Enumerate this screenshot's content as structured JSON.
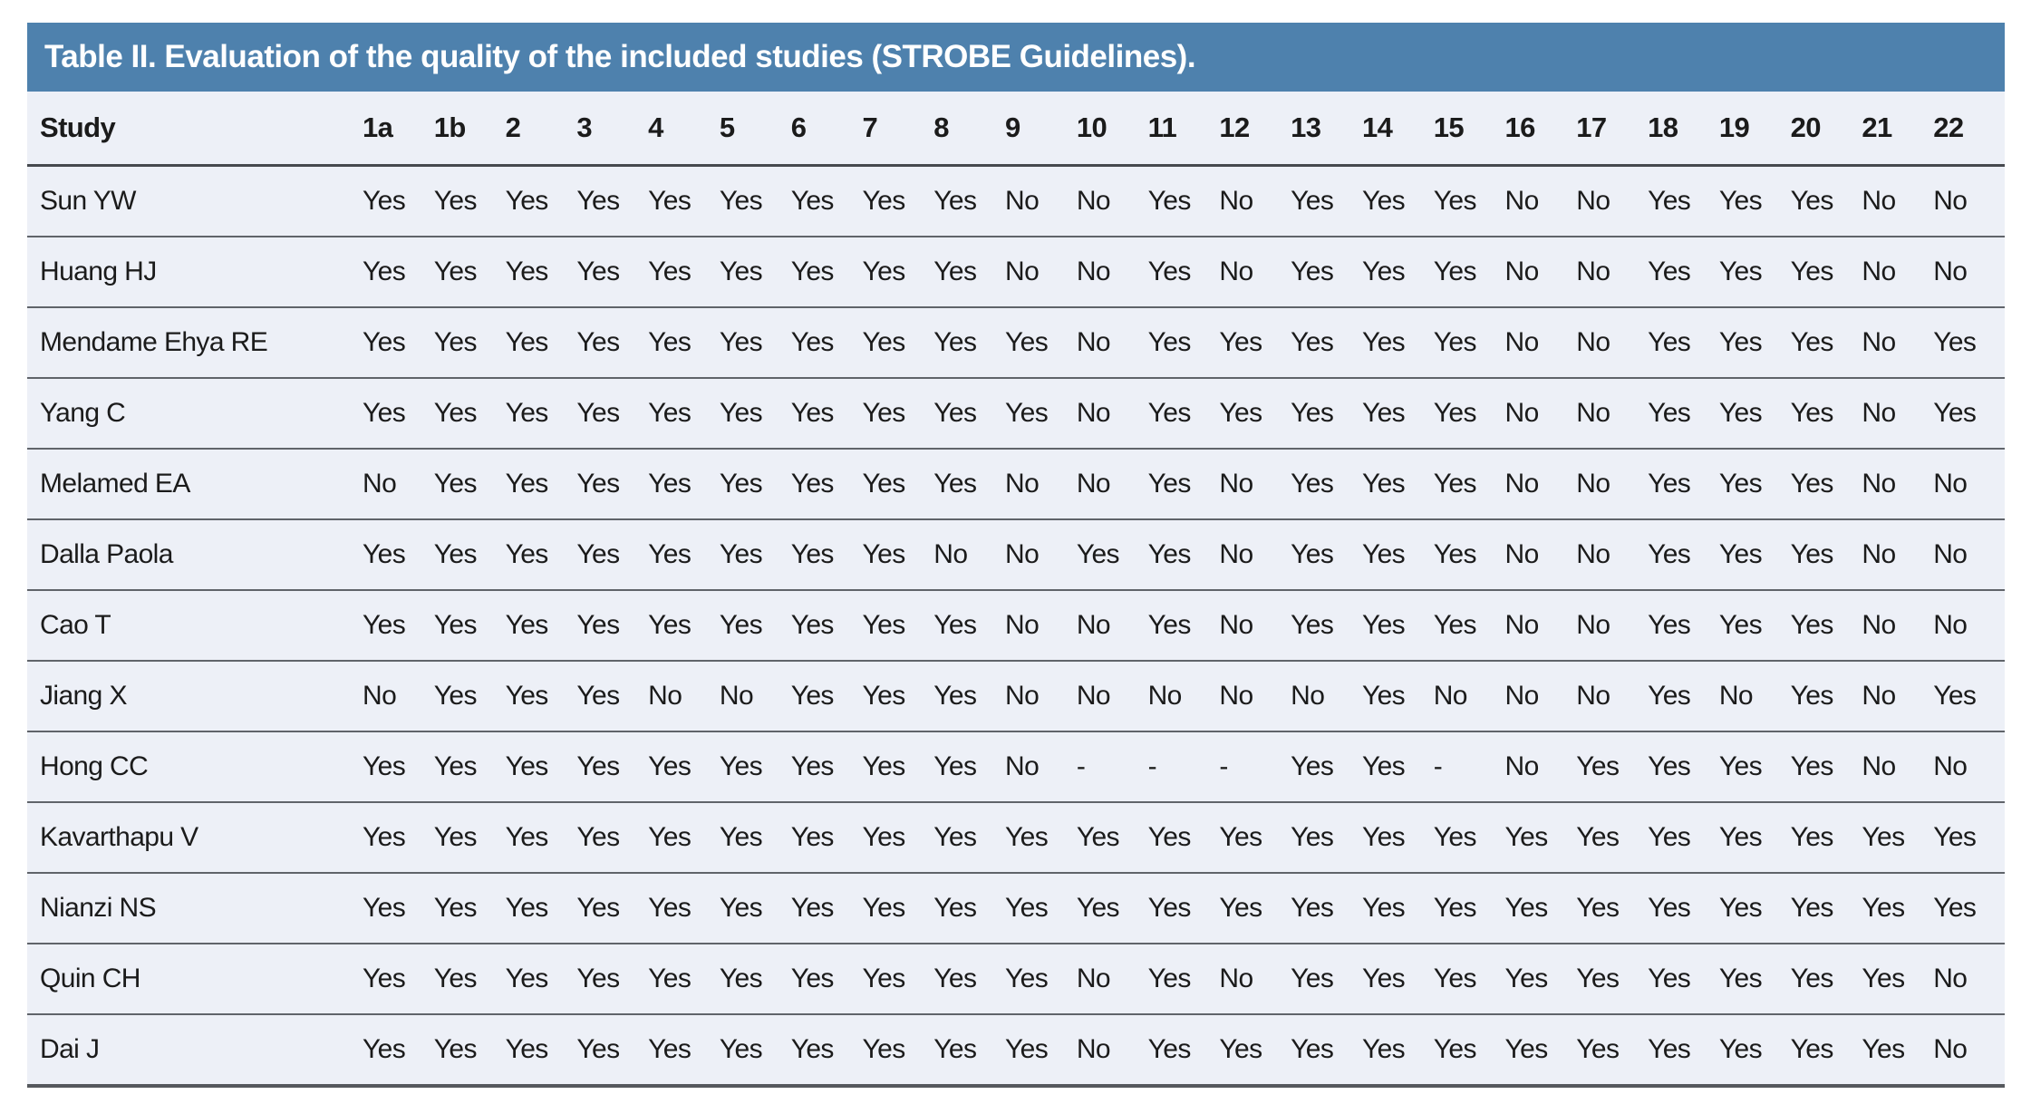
{
  "title": "Table II. Evaluation of the quality of the included studies (STROBE Guidelines).",
  "table": {
    "header": [
      "Study",
      "1a",
      "1b",
      "2",
      "3",
      "4",
      "5",
      "6",
      "7",
      "8",
      "9",
      "10",
      "11",
      "12",
      "13",
      "14",
      "15",
      "16",
      "17",
      "18",
      "19",
      "20",
      "21",
      "22"
    ],
    "rows": [
      {
        "study": "Sun YW",
        "values": [
          "Yes",
          "Yes",
          "Yes",
          "Yes",
          "Yes",
          "Yes",
          "Yes",
          "Yes",
          "Yes",
          "No",
          "No",
          "Yes",
          "No",
          "Yes",
          "Yes",
          "Yes",
          "No",
          "No",
          "Yes",
          "Yes",
          "Yes",
          "No",
          "No"
        ]
      },
      {
        "study": "Huang HJ",
        "values": [
          "Yes",
          "Yes",
          "Yes",
          "Yes",
          "Yes",
          "Yes",
          "Yes",
          "Yes",
          "Yes",
          "No",
          "No",
          "Yes",
          "No",
          "Yes",
          "Yes",
          "Yes",
          "No",
          "No",
          "Yes",
          "Yes",
          "Yes",
          "No",
          "No"
        ]
      },
      {
        "study": "Mendame Ehya RE",
        "values": [
          "Yes",
          "Yes",
          "Yes",
          "Yes",
          "Yes",
          "Yes",
          "Yes",
          "Yes",
          "Yes",
          "Yes",
          "No",
          "Yes",
          "Yes",
          "Yes",
          "Yes",
          "Yes",
          "No",
          "No",
          "Yes",
          "Yes",
          "Yes",
          "No",
          "Yes"
        ]
      },
      {
        "study": "Yang C",
        "values": [
          "Yes",
          "Yes",
          "Yes",
          "Yes",
          "Yes",
          "Yes",
          "Yes",
          "Yes",
          "Yes",
          "Yes",
          "No",
          "Yes",
          "Yes",
          "Yes",
          "Yes",
          "Yes",
          "No",
          "No",
          "Yes",
          "Yes",
          "Yes",
          "No",
          "Yes"
        ]
      },
      {
        "study": "Melamed EA",
        "values": [
          "No",
          "Yes",
          "Yes",
          "Yes",
          "Yes",
          "Yes",
          "Yes",
          "Yes",
          "Yes",
          "No",
          "No",
          "Yes",
          "No",
          "Yes",
          "Yes",
          "Yes",
          "No",
          "No",
          "Yes",
          "Yes",
          "Yes",
          "No",
          "No"
        ]
      },
      {
        "study": "Dalla Paola",
        "values": [
          "Yes",
          "Yes",
          "Yes",
          "Yes",
          "Yes",
          "Yes",
          "Yes",
          "Yes",
          "No",
          "No",
          "Yes",
          "Yes",
          "No",
          "Yes",
          "Yes",
          "Yes",
          "No",
          "No",
          "Yes",
          "Yes",
          "Yes",
          "No",
          "No"
        ]
      },
      {
        "study": "Cao T",
        "values": [
          "Yes",
          "Yes",
          "Yes",
          "Yes",
          "Yes",
          "Yes",
          "Yes",
          "Yes",
          "Yes",
          "No",
          "No",
          "Yes",
          "No",
          "Yes",
          "Yes",
          "Yes",
          "No",
          "No",
          "Yes",
          "Yes",
          "Yes",
          "No",
          "No"
        ]
      },
      {
        "study": "Jiang X",
        "values": [
          "No",
          "Yes",
          "Yes",
          "Yes",
          "No",
          "No",
          "Yes",
          "Yes",
          "Yes",
          "No",
          "No",
          "No",
          "No",
          "No",
          "Yes",
          "No",
          "No",
          "No",
          "Yes",
          "No",
          "Yes",
          "No",
          "Yes"
        ]
      },
      {
        "study": "Hong CC",
        "values": [
          "Yes",
          "Yes",
          "Yes",
          "Yes",
          "Yes",
          "Yes",
          "Yes",
          "Yes",
          "Yes",
          "No",
          "-",
          "-",
          "-",
          "Yes",
          "Yes",
          "-",
          "No",
          "Yes",
          "Yes",
          "Yes",
          "Yes",
          "No",
          "No"
        ]
      },
      {
        "study": "Kavarthapu V",
        "values": [
          "Yes",
          "Yes",
          "Yes",
          "Yes",
          "Yes",
          "Yes",
          "Yes",
          "Yes",
          "Yes",
          "Yes",
          "Yes",
          "Yes",
          "Yes",
          "Yes",
          "Yes",
          "Yes",
          "Yes",
          "Yes",
          "Yes",
          "Yes",
          "Yes",
          "Yes",
          "Yes"
        ]
      },
      {
        "study": "Nianzi NS",
        "values": [
          "Yes",
          "Yes",
          "Yes",
          "Yes",
          "Yes",
          "Yes",
          "Yes",
          "Yes",
          "Yes",
          "Yes",
          "Yes",
          "Yes",
          "Yes",
          "Yes",
          "Yes",
          "Yes",
          "Yes",
          "Yes",
          "Yes",
          "Yes",
          "Yes",
          "Yes",
          "Yes"
        ]
      },
      {
        "study": "Quin CH",
        "values": [
          "Yes",
          "Yes",
          "Yes",
          "Yes",
          "Yes",
          "Yes",
          "Yes",
          "Yes",
          "Yes",
          "Yes",
          "No",
          "Yes",
          "No",
          "Yes",
          "Yes",
          "Yes",
          "Yes",
          "Yes",
          "Yes",
          "Yes",
          "Yes",
          "Yes",
          "No"
        ]
      },
      {
        "study": "Dai J",
        "values": [
          "Yes",
          "Yes",
          "Yes",
          "Yes",
          "Yes",
          "Yes",
          "Yes",
          "Yes",
          "Yes",
          "Yes",
          "No",
          "Yes",
          "Yes",
          "Yes",
          "Yes",
          "Yes",
          "Yes",
          "Yes",
          "Yes",
          "Yes",
          "Yes",
          "Yes",
          "No"
        ]
      }
    ]
  },
  "colors": {
    "header_bg": "#4e81ad",
    "header_text": "#ffffff",
    "body_bg": "#edf0f7",
    "text": "#1b1b1b",
    "row_line": "#60646a",
    "header_line": "#46494e",
    "bottom_line": "#55585d",
    "page_bg": "#ffffff"
  }
}
